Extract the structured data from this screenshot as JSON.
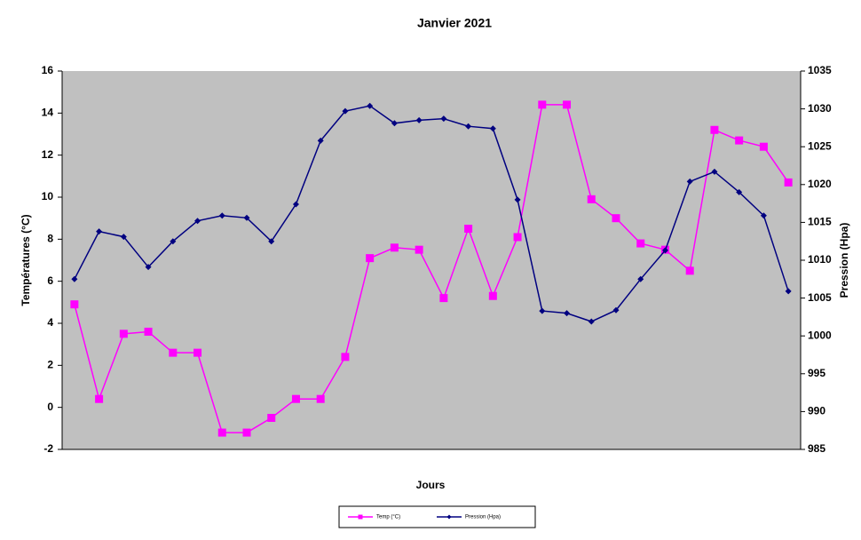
{
  "chart_data": {
    "type": "line",
    "title": "Janvier 2021",
    "x_label": "Jours",
    "y_label": "Températures (°C)",
    "y2_label": "Pression (Hpa)",
    "categories": [
      null,
      null,
      null,
      null,
      null,
      null,
      null,
      null,
      null,
      null,
      null,
      null,
      null,
      null,
      null,
      null,
      null,
      null,
      null,
      null,
      null,
      null,
      null,
      null,
      null,
      null,
      null,
      null,
      null,
      null
    ],
    "ylim": [
      -2,
      16
    ],
    "yticks": [
      -2,
      0,
      2,
      4,
      6,
      8,
      10,
      12,
      14,
      16
    ],
    "y2lim": [
      985,
      1035
    ],
    "y2ticks": [
      985,
      990,
      995,
      1000,
      1005,
      1010,
      1015,
      1020,
      1025,
      1030,
      1035
    ],
    "grid": false,
    "legend": "bottom",
    "background": "#c0c0c0",
    "series": [
      {
        "name": "Temp (°C)",
        "color": "#ff00ff",
        "marker": "square",
        "values": [
          4.9,
          0.4,
          3.5,
          3.6,
          2.6,
          2.6,
          -1.2,
          -1.2,
          -0.5,
          0.4,
          0.4,
          2.4,
          7.1,
          7.6,
          7.5,
          5.2,
          8.5,
          5.3,
          8.1,
          14.4,
          14.4,
          9.9,
          9.0,
          7.8,
          7.5,
          6.5,
          13.2,
          12.7,
          12.4,
          10.7
        ]
      },
      {
        "name": "Pression (Hpa)",
        "color": "#000080",
        "marker": "diamond",
        "axis": "y2",
        "values": [
          1007.5,
          1013.8,
          1013.1,
          1009.1,
          1012.5,
          1015.2,
          1015.9,
          1015.6,
          1012.5,
          1017.4,
          1025.8,
          1029.7,
          1030.4,
          1028.1,
          1028.5,
          1028.7,
          1027.7,
          1027.4,
          1018.0,
          1003.3,
          1003.0,
          1001.9,
          1003.4,
          1007.5,
          1011.3,
          1020.4,
          1021.7,
          1019.0,
          1015.9,
          1005.9
        ]
      }
    ]
  }
}
